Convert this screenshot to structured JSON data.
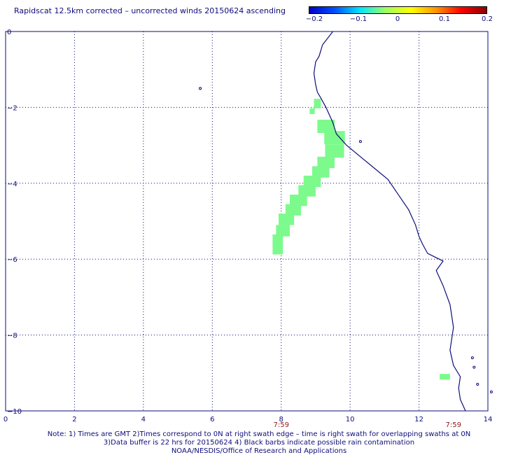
{
  "title": "Rapidscat 12.5km corrected – uncorrected winds 20150624 ascending",
  "colorbar": {
    "labels": [
      "−0.2",
      "−0.1",
      "0",
      "0.1",
      "0.2"
    ],
    "colors": [
      "#0000c8",
      "#0050ff",
      "#00e6ff",
      "#9bff64",
      "#ffff00",
      "#ff9600",
      "#ff0000",
      "#8c0000"
    ]
  },
  "axes": {
    "x_ticks": [
      "0",
      "2",
      "4",
      "6",
      "8",
      "10",
      "12",
      "14"
    ],
    "y_ticks": [
      "0",
      "−2",
      "−4",
      "−6",
      "−8",
      "−10"
    ],
    "xlim": [
      0,
      14
    ],
    "ylim": [
      -10,
      0
    ],
    "grid": true
  },
  "times": [
    {
      "x": 8,
      "label": "7:59"
    },
    {
      "x": 13,
      "label": "7:59"
    }
  ],
  "colors": {
    "coastline": "#0d0d7a",
    "grid": "#0d0d7a",
    "data_cell": "#7dfa8c",
    "time_label": "#8b1a1a",
    "text": "#0d0d7a"
  },
  "notes": {
    "line1": "Note: 1) Times are GMT 2)Times correspond to 0N at right swath edge – time is right swath for overlapping swaths at 0N",
    "line2": "3)Data buffer is 22 hrs for 20150624 4) Black barbs indicate possible rain contamination",
    "line3": "NOAA/NESDIS/Office of Research and Applications"
  },
  "swath_cells": [
    {
      "lon": 9.05,
      "lat": -1.9,
      "w": 0.2,
      "h": 0.25
    },
    {
      "lon": 8.9,
      "lat": -2.1,
      "w": 0.15,
      "h": 0.15
    },
    {
      "lon": 9.3,
      "lat": -2.5,
      "w": 0.5,
      "h": 0.35
    },
    {
      "lon": 9.55,
      "lat": -2.8,
      "w": 0.6,
      "h": 0.35
    },
    {
      "lon": 9.55,
      "lat": -3.15,
      "w": 0.55,
      "h": 0.35
    },
    {
      "lon": 9.3,
      "lat": -3.45,
      "w": 0.5,
      "h": 0.3
    },
    {
      "lon": 9.15,
      "lat": -3.7,
      "w": 0.5,
      "h": 0.3
    },
    {
      "lon": 8.9,
      "lat": -3.95,
      "w": 0.5,
      "h": 0.3
    },
    {
      "lon": 8.75,
      "lat": -4.2,
      "w": 0.5,
      "h": 0.3
    },
    {
      "lon": 8.5,
      "lat": -4.45,
      "w": 0.5,
      "h": 0.3
    },
    {
      "lon": 8.35,
      "lat": -4.7,
      "w": 0.45,
      "h": 0.3
    },
    {
      "lon": 8.15,
      "lat": -4.95,
      "w": 0.45,
      "h": 0.3
    },
    {
      "lon": 8.05,
      "lat": -5.25,
      "w": 0.4,
      "h": 0.3
    },
    {
      "lon": 7.9,
      "lat": -5.5,
      "w": 0.3,
      "h": 0.3
    },
    {
      "lon": 7.9,
      "lat": -5.75,
      "w": 0.3,
      "h": 0.25
    },
    {
      "lon": 12.75,
      "lat": -9.1,
      "w": 0.3,
      "h": 0.15
    }
  ],
  "coastline": [
    [
      9.5,
      0.0
    ],
    [
      9.2,
      -0.35
    ],
    [
      9.1,
      -0.65
    ],
    [
      9.0,
      -0.8
    ],
    [
      8.95,
      -1.1
    ],
    [
      9.0,
      -1.4
    ],
    [
      9.05,
      -1.6
    ],
    [
      9.15,
      -1.75
    ],
    [
      9.3,
      -2.0
    ],
    [
      9.5,
      -2.4
    ],
    [
      9.6,
      -2.7
    ],
    [
      9.9,
      -3.0
    ],
    [
      10.3,
      -3.3
    ],
    [
      10.7,
      -3.6
    ],
    [
      11.1,
      -3.9
    ],
    [
      11.4,
      -4.3
    ],
    [
      11.7,
      -4.7
    ],
    [
      11.9,
      -5.1
    ],
    [
      12.0,
      -5.4
    ],
    [
      12.1,
      -5.6
    ],
    [
      12.25,
      -5.85
    ],
    [
      12.7,
      -6.05
    ],
    [
      12.5,
      -6.3
    ],
    [
      12.7,
      -6.7
    ],
    [
      12.9,
      -7.2
    ],
    [
      13.0,
      -7.8
    ],
    [
      12.9,
      -8.4
    ],
    [
      13.0,
      -8.8
    ],
    [
      13.2,
      -9.1
    ],
    [
      13.15,
      -9.4
    ],
    [
      13.2,
      -9.7
    ],
    [
      13.35,
      -10.0
    ]
  ],
  "islands": [
    {
      "lon": 5.65,
      "lat": -1.5
    },
    {
      "lon": 10.3,
      "lat": -2.9
    },
    {
      "lon": 13.55,
      "lat": -8.6
    },
    {
      "lon": 13.6,
      "lat": -8.85
    },
    {
      "lon": 13.7,
      "lat": -9.3
    },
    {
      "lon": 14.1,
      "lat": -9.5
    }
  ]
}
